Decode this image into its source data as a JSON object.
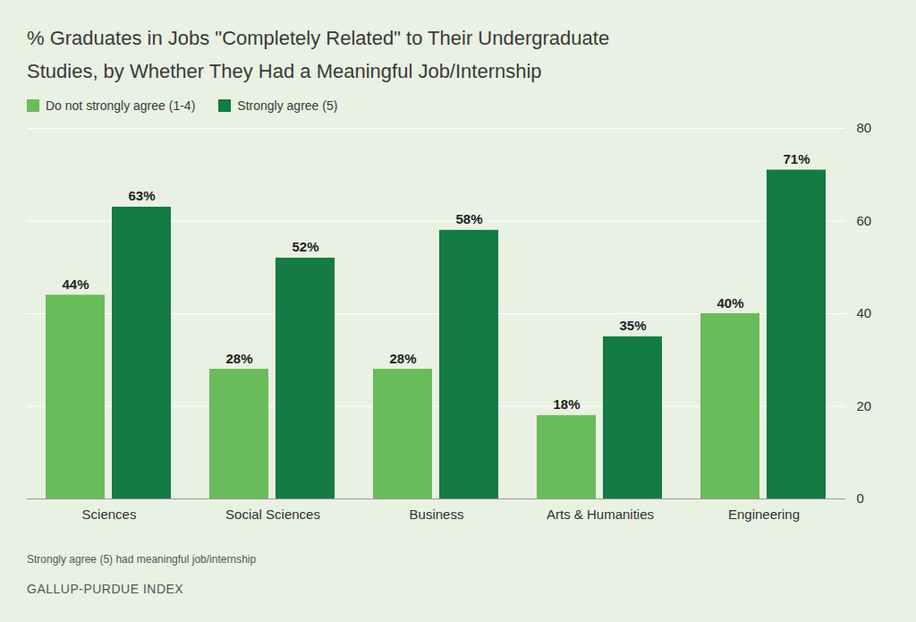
{
  "chart_data": {
    "type": "bar",
    "title": "% Graduates in Jobs \"Completely Related\" to Their Undergraduate Studies, by Whether They Had a Meaningful Job/Internship",
    "categories": [
      "Sciences",
      "Social Sciences",
      "Business",
      "Arts & Humanities",
      "Engineering"
    ],
    "series": [
      {
        "name": "Do not strongly agree (1-4)",
        "color": "#6abb59",
        "values": [
          44,
          28,
          28,
          18,
          40
        ],
        "value_labels": [
          "44%",
          "28%",
          "28%",
          "18%",
          "40%"
        ]
      },
      {
        "name": "Strongly agree (5)",
        "color": "#137b43",
        "values": [
          63,
          52,
          58,
          35,
          71
        ],
        "value_labels": [
          "63%",
          "52%",
          "58%",
          "35%",
          "71%"
        ]
      }
    ],
    "ylim": [
      0,
      80
    ],
    "yticks": [
      0,
      20,
      40,
      60,
      80
    ],
    "grid": true,
    "data_labels": true,
    "legend": "top-left",
    "footnote": "Strongly agree (5) had meaningful job/internship",
    "source": "GALLUP-PURDUE INDEX"
  }
}
